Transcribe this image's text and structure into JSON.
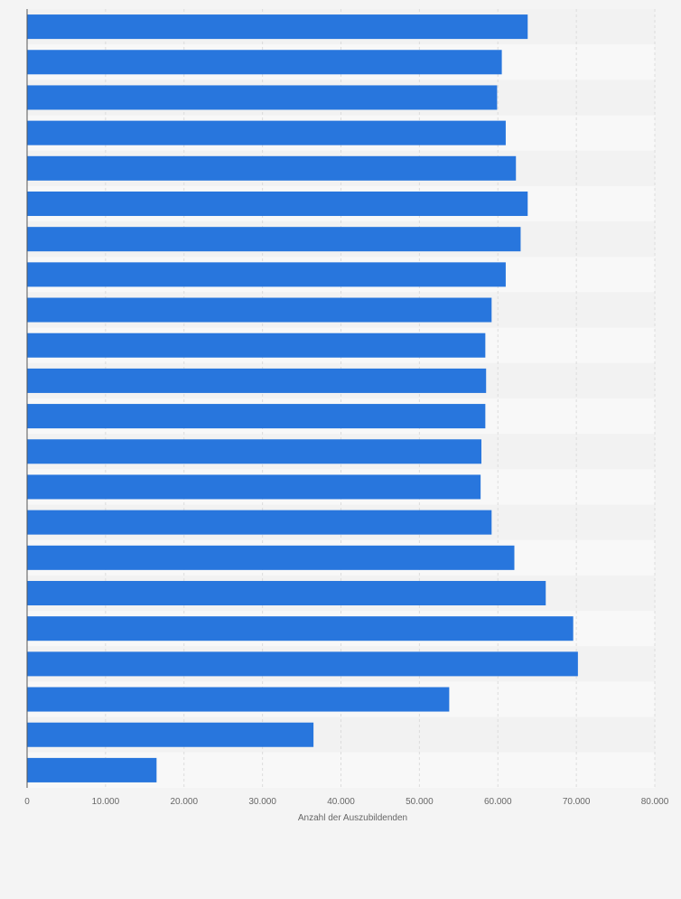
{
  "chart_data": {
    "type": "bar",
    "orientation": "horizontal",
    "values": [
      63800,
      60500,
      59900,
      61000,
      62300,
      63800,
      62900,
      61000,
      59200,
      58400,
      58500,
      58400,
      57900,
      57800,
      59200,
      62100,
      66100,
      69600,
      70200,
      53800,
      36500,
      16500
    ],
    "xlabel": "Anzahl der Auszubildenden",
    "xlim": [
      0,
      80000
    ],
    "xticks": [
      "0",
      "10.000",
      "20.000",
      "30.000",
      "40.000",
      "50.000",
      "60.000",
      "70.000",
      "80.000"
    ],
    "grid": true,
    "legend": "none",
    "colors": {
      "bar": "#2876dd",
      "background": "#f4f4f4",
      "band_light": "#f8f8f8",
      "band_dark": "#f2f2f2",
      "grid": "#dcdcdc",
      "axis": "#555555",
      "tick_text": "#666666"
    }
  }
}
